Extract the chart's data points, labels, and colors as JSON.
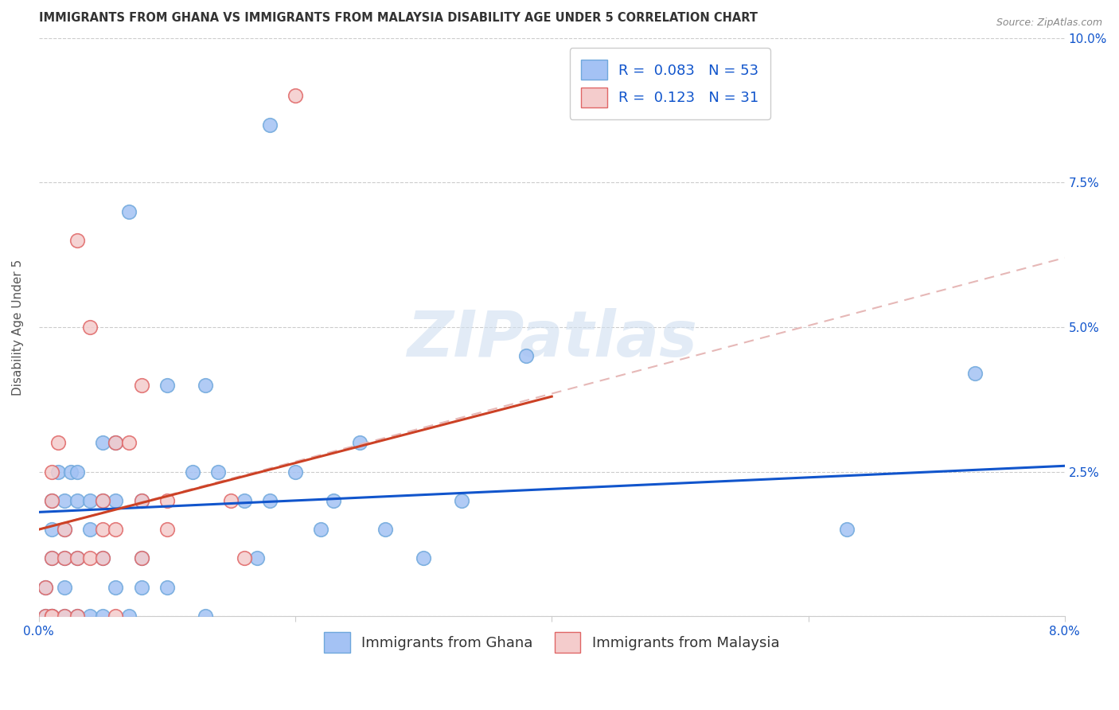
{
  "title": "IMMIGRANTS FROM GHANA VS IMMIGRANTS FROM MALAYSIA DISABILITY AGE UNDER 5 CORRELATION CHART",
  "source": "Source: ZipAtlas.com",
  "ylabel": "Disability Age Under 5",
  "xlim": [
    0.0,
    0.08
  ],
  "ylim": [
    0.0,
    0.1
  ],
  "xticks": [
    0.0,
    0.02,
    0.04,
    0.06,
    0.08
  ],
  "xtick_labels": [
    "0.0%",
    "",
    "",
    "",
    "8.0%"
  ],
  "yticks": [
    0.0,
    0.025,
    0.05,
    0.075,
    0.1
  ],
  "ytick_labels": [
    "",
    "2.5%",
    "5.0%",
    "7.5%",
    "10.0%"
  ],
  "ghana_R": "0.083",
  "ghana_N": "53",
  "malaysia_R": "0.123",
  "malaysia_N": "31",
  "ghana_color": "#a4c2f4",
  "malaysia_color": "#f4cccc",
  "ghana_scatter_edge": "#6fa8dc",
  "malaysia_scatter_edge": "#e06666",
  "ghana_line_color": "#1155cc",
  "malaysia_line_color": "#cc4125",
  "malaysia_dashed_color": "#e6b8b7",
  "trendline_ghana_x0": 0.0,
  "trendline_ghana_y0": 0.018,
  "trendline_ghana_x1": 0.08,
  "trendline_ghana_y1": 0.026,
  "trendline_malaysia_solid_x0": 0.0,
  "trendline_malaysia_solid_y0": 0.015,
  "trendline_malaysia_solid_x1": 0.04,
  "trendline_malaysia_solid_y1": 0.038,
  "trendline_malaysia_dashed_x0": 0.0,
  "trendline_malaysia_dashed_y0": 0.015,
  "trendline_malaysia_dashed_x1": 0.08,
  "trendline_malaysia_dashed_y1": 0.062,
  "ghana_x": [
    0.0005,
    0.0005,
    0.001,
    0.001,
    0.001,
    0.001,
    0.001,
    0.0015,
    0.002,
    0.002,
    0.002,
    0.002,
    0.002,
    0.0025,
    0.003,
    0.003,
    0.003,
    0.003,
    0.004,
    0.004,
    0.004,
    0.005,
    0.005,
    0.005,
    0.005,
    0.006,
    0.006,
    0.006,
    0.007,
    0.007,
    0.008,
    0.008,
    0.008,
    0.01,
    0.01,
    0.012,
    0.013,
    0.013,
    0.014,
    0.016,
    0.017,
    0.018,
    0.018,
    0.02,
    0.022,
    0.023,
    0.025,
    0.027,
    0.03,
    0.033,
    0.038,
    0.063,
    0.073
  ],
  "ghana_y": [
    0.0,
    0.005,
    0.0,
    0.0,
    0.01,
    0.015,
    0.02,
    0.025,
    0.0,
    0.005,
    0.01,
    0.015,
    0.02,
    0.025,
    0.0,
    0.01,
    0.02,
    0.025,
    0.0,
    0.015,
    0.02,
    0.0,
    0.01,
    0.02,
    0.03,
    0.005,
    0.02,
    0.03,
    0.0,
    0.07,
    0.005,
    0.01,
    0.02,
    0.005,
    0.04,
    0.025,
    0.0,
    0.04,
    0.025,
    0.02,
    0.01,
    0.02,
    0.085,
    0.025,
    0.015,
    0.02,
    0.03,
    0.015,
    0.01,
    0.02,
    0.045,
    0.015,
    0.042
  ],
  "malaysia_x": [
    0.0005,
    0.0005,
    0.001,
    0.001,
    0.001,
    0.001,
    0.001,
    0.0015,
    0.002,
    0.002,
    0.002,
    0.003,
    0.003,
    0.003,
    0.004,
    0.004,
    0.005,
    0.005,
    0.005,
    0.006,
    0.006,
    0.006,
    0.007,
    0.008,
    0.008,
    0.008,
    0.01,
    0.01,
    0.015,
    0.016,
    0.02
  ],
  "malaysia_y": [
    0.0,
    0.005,
    0.0,
    0.0,
    0.01,
    0.02,
    0.025,
    0.03,
    0.0,
    0.01,
    0.015,
    0.0,
    0.01,
    0.065,
    0.01,
    0.05,
    0.01,
    0.015,
    0.02,
    0.0,
    0.015,
    0.03,
    0.03,
    0.01,
    0.02,
    0.04,
    0.015,
    0.02,
    0.02,
    0.01,
    0.09
  ],
  "watermark": "ZIPatlas",
  "title_fontsize": 10.5,
  "axis_label_fontsize": 11,
  "tick_fontsize": 11,
  "legend_fontsize": 13
}
